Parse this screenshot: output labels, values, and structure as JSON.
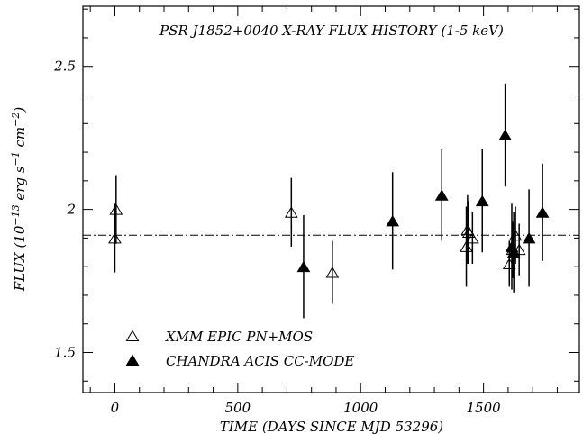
{
  "chart_data": {
    "type": "scatter",
    "title": "PSR J1852+0040 X-RAY FLUX HISTORY (1-5 keV)",
    "xlabel": "TIME (DAYS SINCE MJD 53296)",
    "ylabel_parts": {
      "prefix": "FLUX (10",
      "exp1": "−13",
      "mid1": " erg s",
      "exp2": "−1",
      "mid2": " cm",
      "exp3": "−2",
      "suffix": ")"
    },
    "xlim": [
      -130,
      1890
    ],
    "ylim": [
      1.36,
      2.71
    ],
    "xticks": [
      0,
      500,
      1000,
      1500
    ],
    "yticks": [
      1.5,
      2,
      2.5
    ],
    "xtick_labels": [
      "0",
      "500",
      "1000",
      "1500"
    ],
    "ytick_labels": [
      "1.5",
      "2",
      "2.5"
    ],
    "reference_line": {
      "y": 1.91,
      "style": "dash-dot"
    },
    "legend_placement": "bottom-left",
    "series": [
      {
        "name": "XMM EPIC PN+MOS",
        "marker": "open-triangle",
        "points": [
          {
            "x": 0,
            "y": 1.9,
            "err": 0.12
          },
          {
            "x": 5,
            "y": 2.0,
            "err": 0.12
          },
          {
            "x": 718,
            "y": 1.99,
            "err": 0.12
          },
          {
            "x": 885,
            "y": 1.78,
            "err": 0.11
          },
          {
            "x": 1430,
            "y": 1.87,
            "err": 0.14
          },
          {
            "x": 1435,
            "y": 1.93,
            "err": 0.12
          },
          {
            "x": 1440,
            "y": 1.92,
            "err": 0.11
          },
          {
            "x": 1455,
            "y": 1.9,
            "err": 0.09
          },
          {
            "x": 1605,
            "y": 1.81,
            "err": 0.08
          },
          {
            "x": 1618,
            "y": 1.86,
            "err": 0.1
          },
          {
            "x": 1630,
            "y": 1.91,
            "err": 0.1
          },
          {
            "x": 1645,
            "y": 1.86,
            "err": 0.09
          }
        ]
      },
      {
        "name": "CHANDRA ACIS CC-MODE",
        "marker": "filled-triangle",
        "points": [
          {
            "x": 768,
            "y": 1.8,
            "err": 0.18
          },
          {
            "x": 1130,
            "y": 1.96,
            "err": 0.17
          },
          {
            "x": 1330,
            "y": 2.05,
            "err": 0.16
          },
          {
            "x": 1495,
            "y": 2.03,
            "err": 0.18
          },
          {
            "x": 1588,
            "y": 2.26,
            "err": 0.18
          },
          {
            "x": 1615,
            "y": 1.87,
            "err": 0.15
          },
          {
            "x": 1623,
            "y": 1.85,
            "err": 0.14
          },
          {
            "x": 1685,
            "y": 1.9,
            "err": 0.17
          },
          {
            "x": 1740,
            "y": 1.99,
            "err": 0.17
          }
        ]
      }
    ]
  }
}
